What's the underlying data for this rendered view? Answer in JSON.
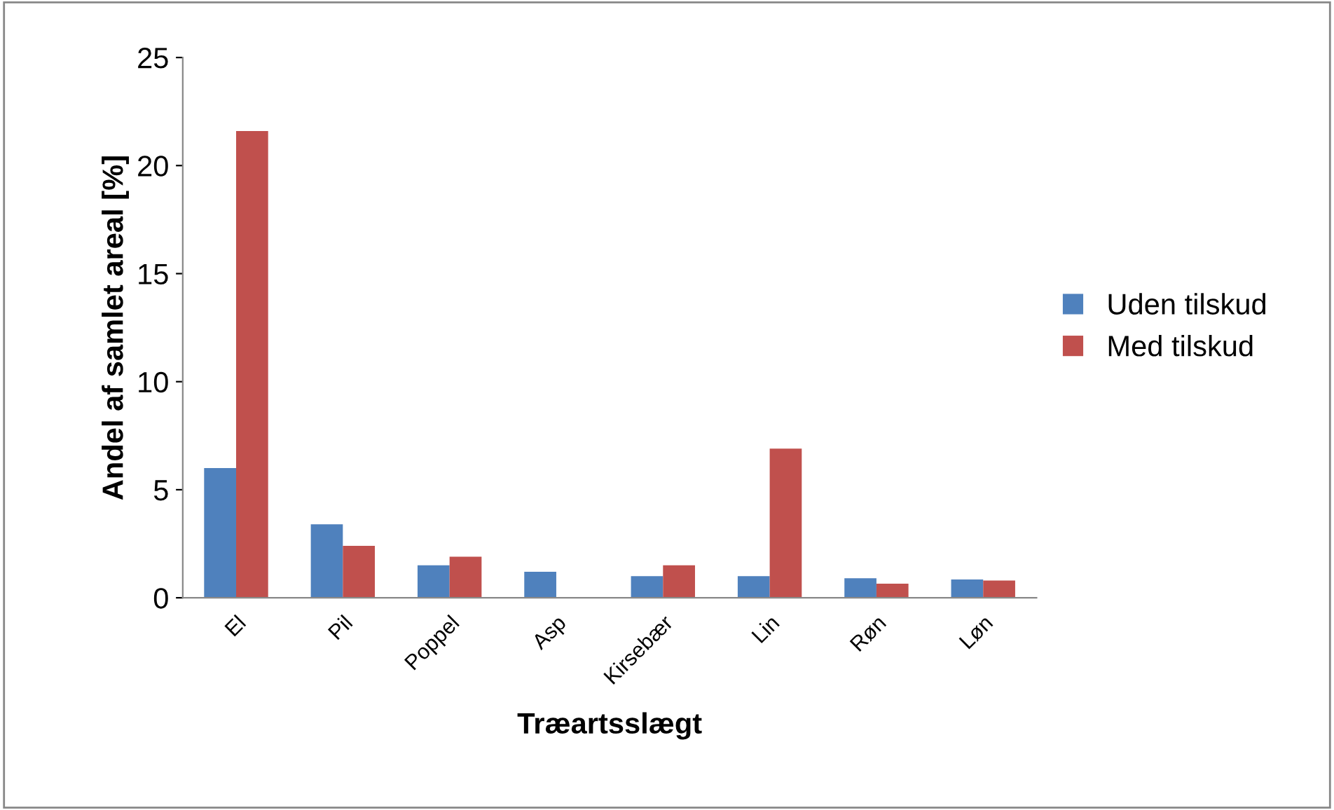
{
  "chart_data": {
    "type": "bar",
    "xlabel": "Træartsslægt",
    "ylabel": "Andel af samlet areal [%]",
    "categories": [
      "El",
      "Pil",
      "Poppel",
      "Asp",
      "Kirsebær",
      "Lin",
      "Røn",
      "Løn"
    ],
    "series": [
      {
        "name": "Uden tilskud",
        "color": "#4f81bd",
        "values": [
          6.0,
          3.4,
          1.5,
          1.2,
          1.0,
          1.0,
          0.9,
          0.85
        ]
      },
      {
        "name": "Med tilskud",
        "color": "#c0504d",
        "values": [
          21.6,
          2.4,
          1.9,
          0,
          1.5,
          6.9,
          0.65,
          0.8
        ]
      }
    ],
    "ylim": [
      0,
      25
    ],
    "yticks": [
      0,
      5,
      10,
      15,
      20,
      25
    ],
    "grid": false,
    "legend": "right"
  }
}
